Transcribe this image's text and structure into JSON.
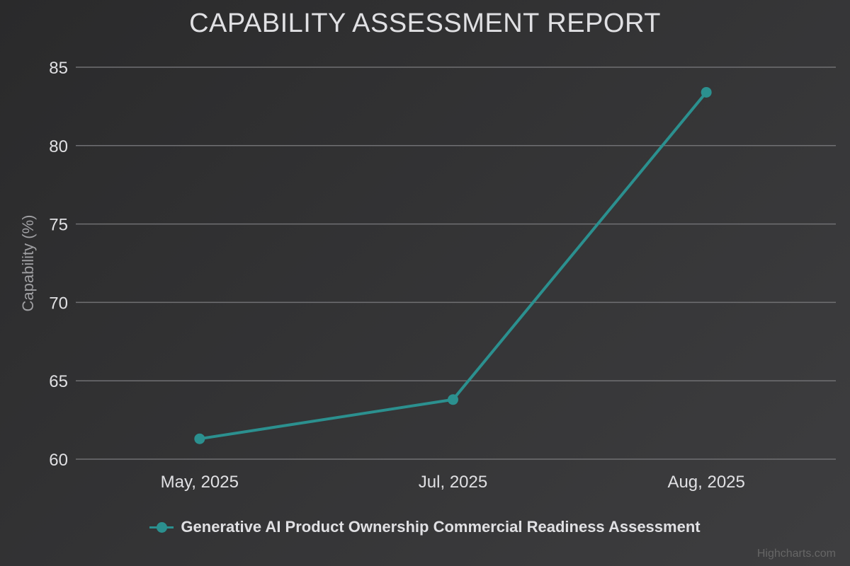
{
  "colors": {
    "series": "#2b908f",
    "grid": "#707073",
    "text": "#e0e0e3",
    "axis_title": "#a0a0a3",
    "credits": "#666666"
  },
  "chart_data": {
    "type": "line",
    "title": "CAPABILITY ASSESSMENT REPORT",
    "xlabel": "",
    "ylabel": "Capability (%)",
    "categories": [
      "May, 2025",
      "Jul, 2025",
      "Aug, 2025"
    ],
    "series": [
      {
        "name": "Generative AI Product Ownership Commercial Readiness Assessment",
        "values": [
          61.3,
          63.8,
          83.4
        ]
      }
    ],
    "ylim": [
      60,
      85
    ],
    "yticks": [
      60,
      65,
      70,
      75,
      80,
      85
    ],
    "grid": true,
    "legend_position": "bottom-center"
  },
  "credits": "Highcharts.com"
}
